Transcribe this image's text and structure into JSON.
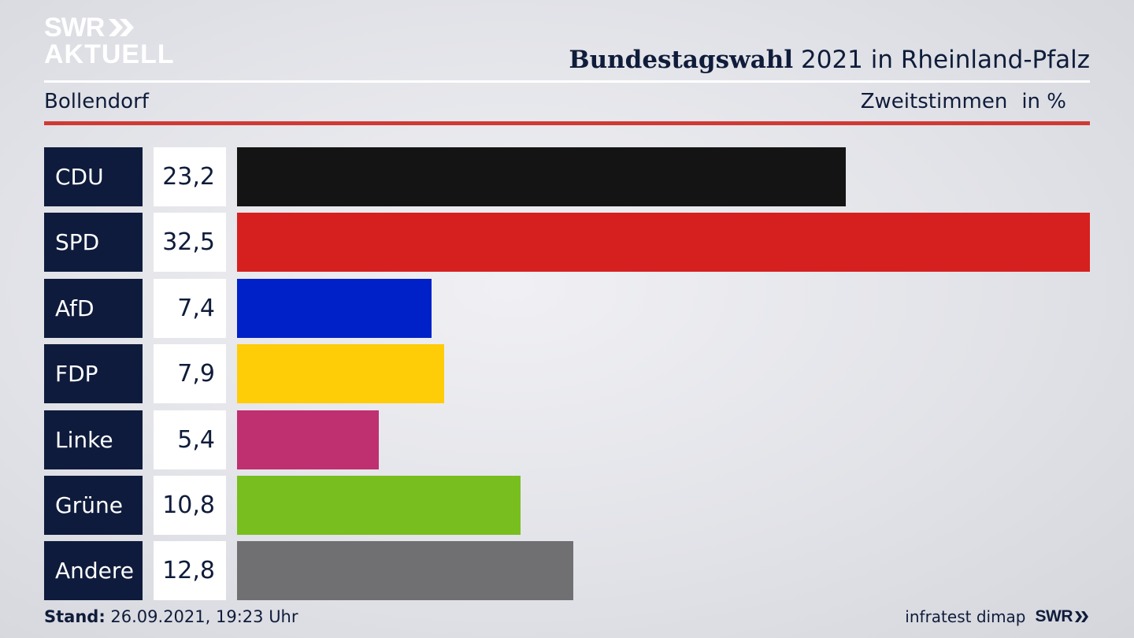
{
  "header": {
    "logo_line1": "SWR",
    "logo_line2": "AKTUELL",
    "title_bold": "Bundestagswahl",
    "title_rest": "2021 in Rheinland-Pfalz",
    "region": "Bollendorf",
    "metric": "Zweitstimmen",
    "unit": "in %"
  },
  "chart_data": {
    "type": "bar",
    "orientation": "horizontal",
    "categories": [
      "CDU",
      "SPD",
      "AfD",
      "FDP",
      "Linke",
      "Grüne",
      "Andere"
    ],
    "values": [
      23.2,
      32.5,
      7.4,
      7.9,
      5.4,
      10.8,
      12.8
    ],
    "value_labels": [
      "23,2",
      "32,5",
      "7,4",
      "7,9",
      "5,4",
      "10,8",
      "12,8"
    ],
    "colors": [
      "#141414",
      "#d62020",
      "#0020c8",
      "#ffcc08",
      "#bf3070",
      "#78be1e",
      "#707072"
    ],
    "xlim": [
      0,
      32.5
    ]
  },
  "footer": {
    "stand_label": "Stand:",
    "stand_value": "26.09.2021, 19:23 Uhr",
    "source": "infratest dimap",
    "brand": "SWR"
  }
}
